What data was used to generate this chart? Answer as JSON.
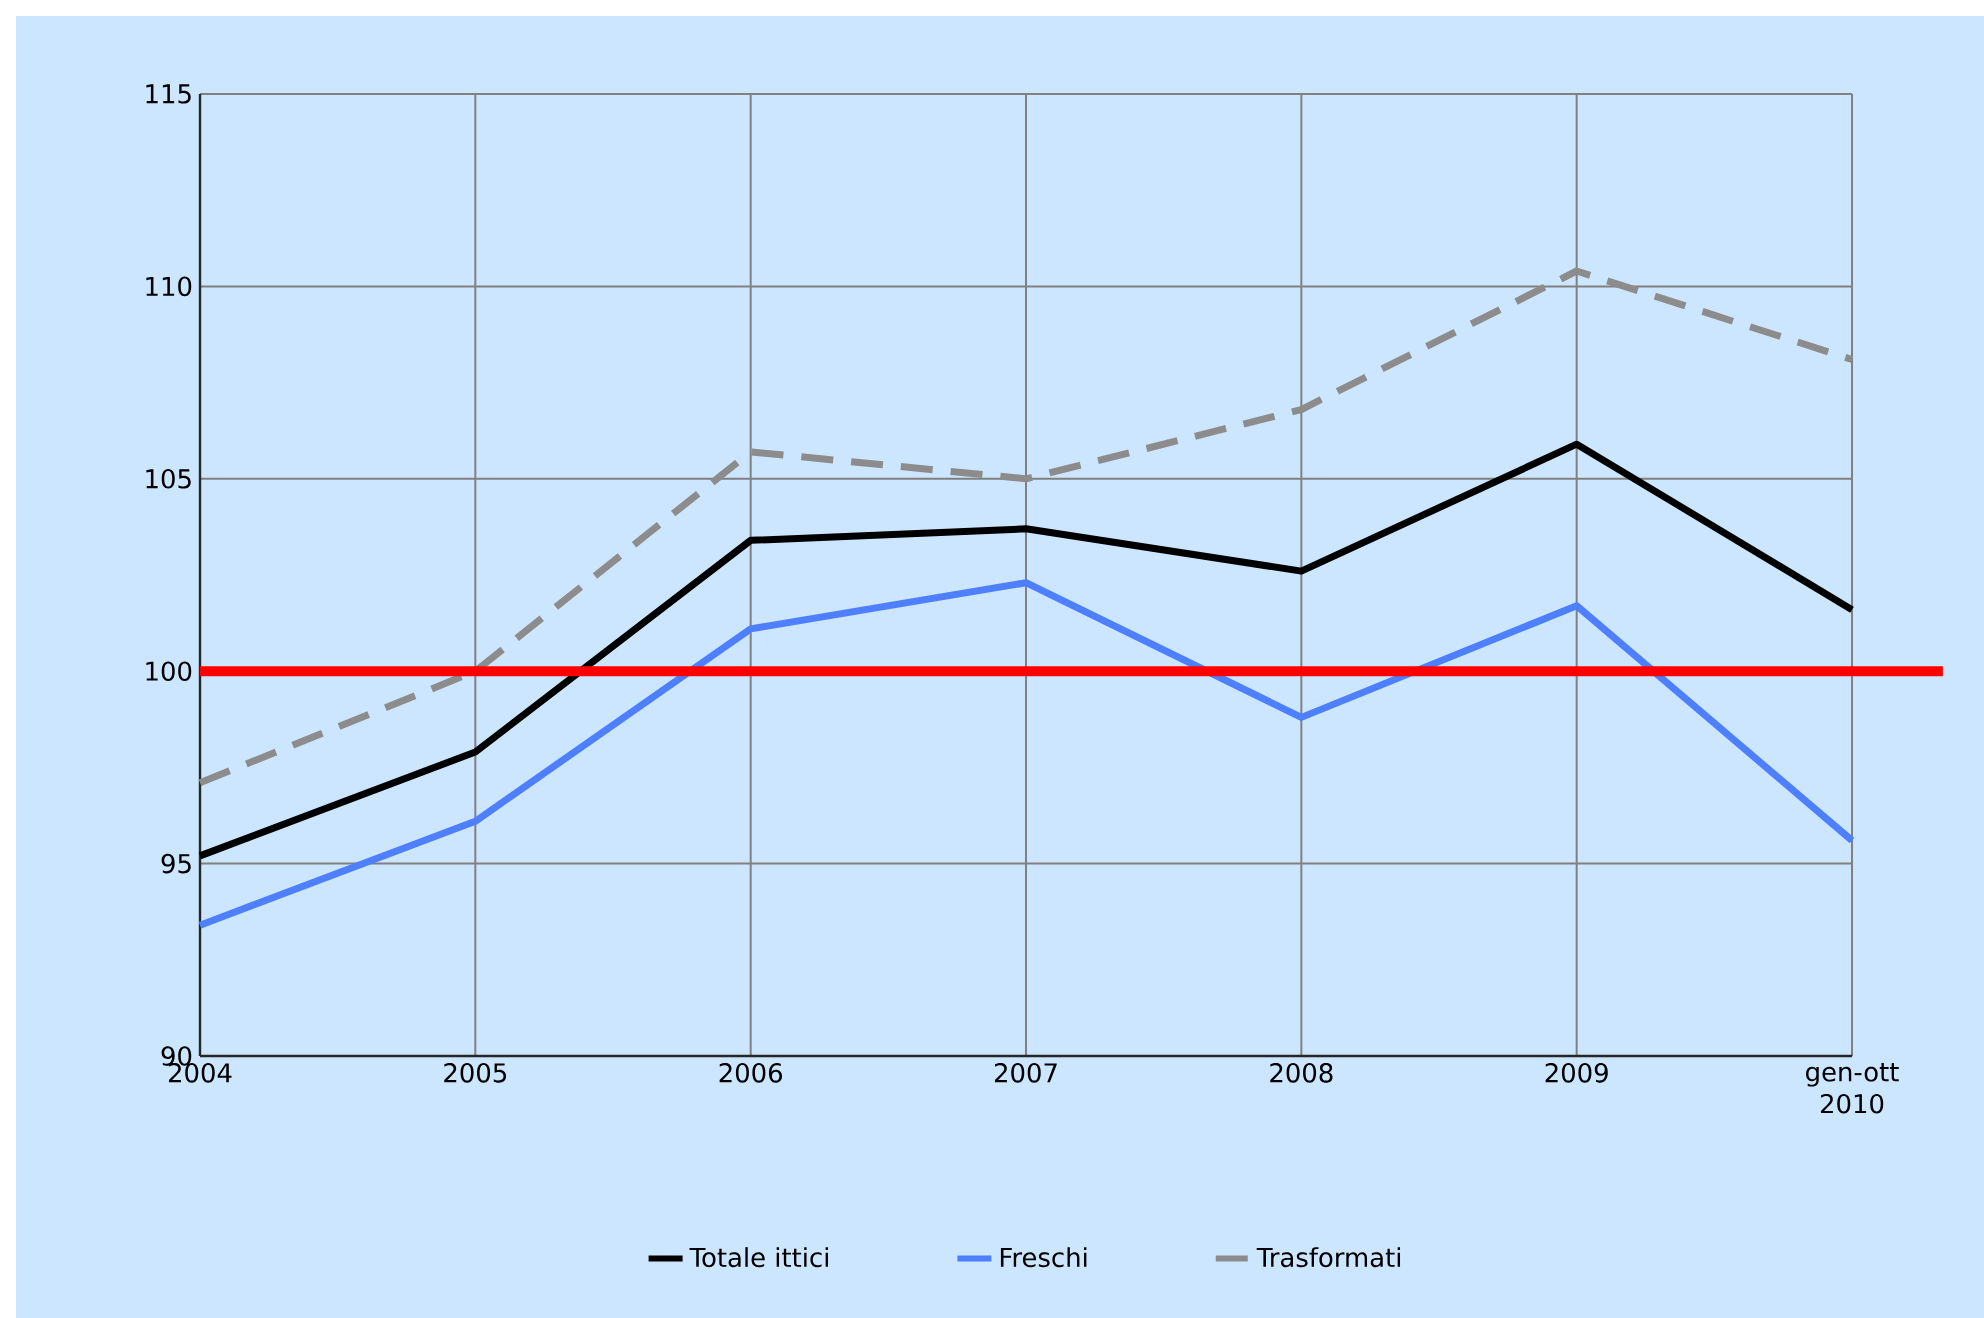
{
  "chart_data": {
    "type": "line",
    "categories": [
      "2004",
      "2005",
      "2006",
      "2007",
      "2008",
      "2009",
      "gen-ott 2010"
    ],
    "series": [
      {
        "name": "Totale ittici",
        "color": "#000000",
        "line_style": "solid",
        "values": [
          95.2,
          97.9,
          103.4,
          103.7,
          102.6,
          105.9,
          101.6
        ]
      },
      {
        "name": "Freschi",
        "color": "#4d7fff",
        "line_style": "solid",
        "values": [
          93.4,
          96.1,
          101.1,
          102.3,
          98.8,
          101.7,
          95.6
        ]
      },
      {
        "name": "Trasformati",
        "color": "#8c8c8c",
        "line_style": "dashed",
        "values": [
          97.1,
          100.0,
          105.7,
          105.0,
          106.8,
          110.4,
          108.1
        ]
      }
    ],
    "ylim": [
      90,
      115
    ],
    "yticks": [
      90,
      95,
      100,
      105,
      110,
      115
    ],
    "grid": true,
    "legend": "bottom",
    "marker": "none",
    "ref_lines": [
      {
        "axis": "y",
        "value": 100,
        "color": "#ff0000"
      }
    ]
  }
}
